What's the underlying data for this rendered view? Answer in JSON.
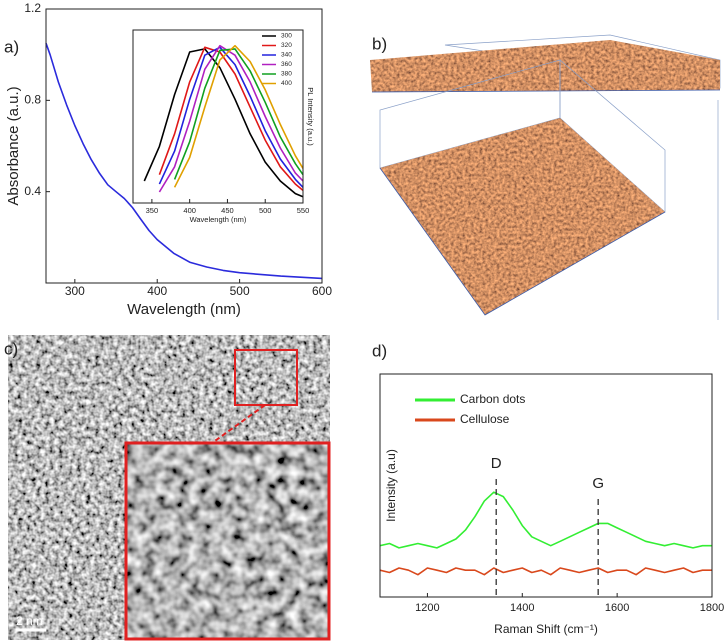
{
  "panel_labels": [
    "a)",
    "b)",
    "c)",
    "d)"
  ],
  "scale_bar_label": "2 nm",
  "chart_data": [
    {
      "type": "line",
      "x_label": "Wavelength (nm)",
      "y_label": "Absorbance (a.u.)",
      "x": [
        265,
        270,
        280,
        290,
        300,
        310,
        320,
        330,
        340,
        350,
        360,
        370,
        380,
        390,
        400,
        420,
        440,
        460,
        480,
        500,
        550,
        600
      ],
      "values": [
        1.05,
        1.0,
        0.88,
        0.78,
        0.69,
        0.61,
        0.54,
        0.48,
        0.43,
        0.4,
        0.37,
        0.33,
        0.28,
        0.23,
        0.19,
        0.13,
        0.09,
        0.07,
        0.055,
        0.045,
        0.03,
        0.02
      ],
      "color": "#2b2bdc",
      "xlim": [
        265,
        600
      ],
      "ylim": [
        0,
        1.2
      ],
      "xticks": [
        300,
        400,
        500,
        600
      ],
      "yticks": [
        0.4,
        0.8,
        1.2
      ]
    },
    {
      "type": "line",
      "x_label": "Wavelength (nm)",
      "y_label": "PL Intensity (a.u.)",
      "x": [
        340,
        360,
        380,
        400,
        420,
        440,
        460,
        480,
        500,
        520,
        540,
        550
      ],
      "series": [
        {
          "name": "300",
          "color": "#000000",
          "values": [
            0.14,
            0.36,
            0.69,
            0.96,
            0.98,
            0.86,
            0.66,
            0.44,
            0.26,
            0.14,
            0.06,
            0.04
          ]
        },
        {
          "name": "320",
          "color": "#e01818",
          "values": [
            null,
            0.18,
            0.44,
            0.77,
            0.99,
            0.96,
            0.82,
            0.61,
            0.4,
            0.23,
            0.12,
            0.08
          ]
        },
        {
          "name": "340",
          "color": "#2222dd",
          "values": [
            null,
            0.12,
            0.33,
            0.66,
            0.94,
            0.99,
            0.88,
            0.68,
            0.46,
            0.28,
            0.15,
            0.1
          ]
        },
        {
          "name": "360",
          "color": "#b020c0",
          "values": [
            null,
            0.07,
            0.23,
            0.52,
            0.85,
            1.0,
            0.94,
            0.77,
            0.55,
            0.35,
            0.19,
            0.14
          ]
        },
        {
          "name": "380",
          "color": "#10a020",
          "values": [
            null,
            null,
            0.15,
            0.39,
            0.73,
            0.97,
            0.98,
            0.84,
            0.64,
            0.42,
            0.25,
            0.18
          ]
        },
        {
          "name": "400",
          "color": "#e0a000",
          "values": [
            null,
            null,
            0.1,
            0.29,
            0.61,
            0.91,
            1.0,
            0.9,
            0.72,
            0.5,
            0.3,
            0.22
          ]
        }
      ],
      "xlim": [
        325,
        550
      ],
      "ylim": [
        0,
        1.1
      ],
      "xticks": [
        350,
        400,
        450,
        500,
        550
      ]
    },
    {
      "type": "line",
      "x_label": "Raman Shift (cm⁻¹)",
      "y_label": "Intensity (a.u)",
      "x": [
        1100,
        1120,
        1140,
        1160,
        1180,
        1200,
        1220,
        1240,
        1260,
        1280,
        1300,
        1320,
        1340,
        1360,
        1380,
        1400,
        1420,
        1440,
        1460,
        1480,
        1500,
        1520,
        1540,
        1560,
        1580,
        1600,
        1620,
        1640,
        1660,
        1680,
        1700,
        1720,
        1740,
        1760,
        1780,
        1800
      ],
      "series": [
        {
          "name": "Carbon dots",
          "color": "#33ee33",
          "values": [
            0.23,
            0.24,
            0.22,
            0.23,
            0.24,
            0.23,
            0.22,
            0.24,
            0.26,
            0.3,
            0.36,
            0.43,
            0.47,
            0.45,
            0.39,
            0.32,
            0.27,
            0.25,
            0.23,
            0.25,
            0.27,
            0.29,
            0.31,
            0.33,
            0.33,
            0.31,
            0.29,
            0.27,
            0.25,
            0.24,
            0.23,
            0.24,
            0.23,
            0.22,
            0.23,
            0.23
          ]
        },
        {
          "name": "Cellulose",
          "color": "#d9481c",
          "values": [
            0.12,
            0.11,
            0.13,
            0.12,
            0.1,
            0.13,
            0.12,
            0.11,
            0.13,
            0.12,
            0.12,
            0.1,
            0.13,
            0.11,
            0.12,
            0.13,
            0.11,
            0.12,
            0.1,
            0.13,
            0.12,
            0.11,
            0.12,
            0.13,
            0.11,
            0.12,
            0.12,
            0.1,
            0.13,
            0.12,
            0.11,
            0.12,
            0.13,
            0.11,
            0.12,
            0.12
          ]
        }
      ],
      "annotations": [
        {
          "text": "D",
          "x": 1345
        },
        {
          "text": "G",
          "x": 1560
        }
      ],
      "xlim": [
        1100,
        1800
      ],
      "ylim": [
        0,
        1
      ],
      "xticks": [
        1200,
        1400,
        1600,
        1800
      ]
    }
  ]
}
